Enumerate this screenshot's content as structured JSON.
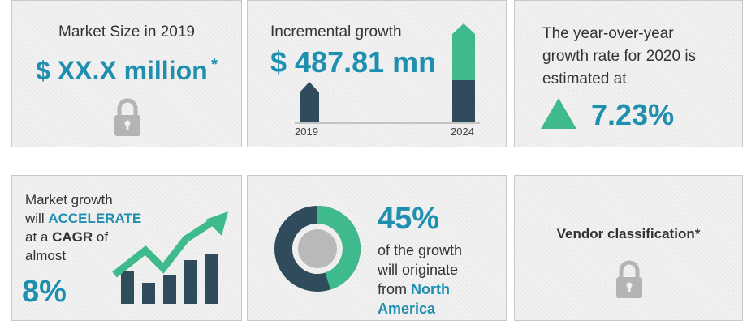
{
  "card1": {
    "title": "Market Size in 2019",
    "value": "$ XX.X million",
    "asterisk": "*",
    "icon": "lock-icon"
  },
  "card2": {
    "title": "Incremental growth",
    "value": "$ 487.81 mn",
    "year_start": "2019",
    "year_end": "2024"
  },
  "card3": {
    "line1": "The year-over-year",
    "line2": "growth rate for 2020 is",
    "line3": "estimated at",
    "value": "7.23%",
    "icon": "up-triangle-icon"
  },
  "card4": {
    "line1": "Market growth",
    "line2_pre": "will ",
    "line2_em": "ACCELERATE",
    "line3_pre": "at a ",
    "line3_em": "CAGR",
    "line3_post": " of",
    "line4": "almost",
    "value": "8%",
    "icon": "growth-chart-icon"
  },
  "card5": {
    "value": "45%",
    "share": 0.45,
    "line1": "of the growth",
    "line2": "will originate",
    "line3_pre": "from ",
    "line3_em": "North",
    "line4": "America",
    "icon": "donut-chart-icon"
  },
  "card6": {
    "title": "Vendor classification*",
    "icon": "lock-icon"
  },
  "colors": {
    "teal": "#1f8fb0",
    "green": "#3fba8c",
    "navy": "#2f4b5c",
    "lock": "#b4b4b4"
  }
}
